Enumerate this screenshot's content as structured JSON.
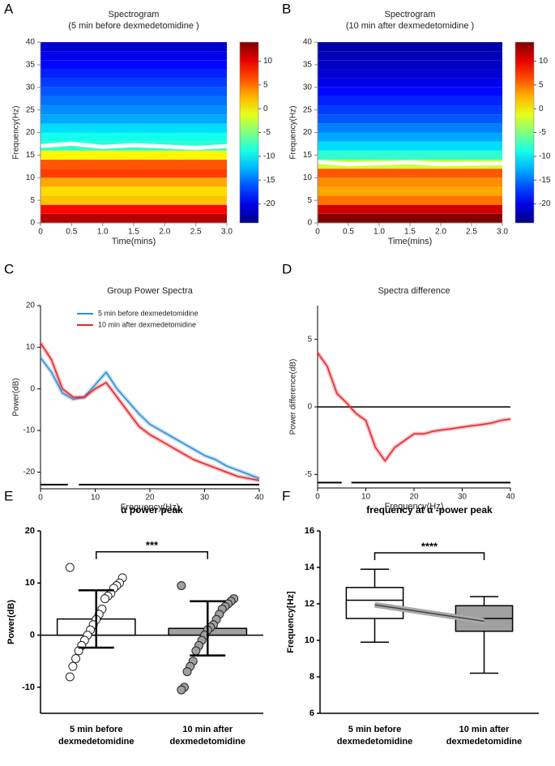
{
  "chart_data": [
    {
      "type": "heatmap",
      "panel": "A",
      "title": "Spectrogram",
      "subtitle": "(5 min before dexmedetomidine )",
      "x_label": "Time(mins)",
      "y_label": "Frequency(Hz)",
      "xlim": [
        0,
        3
      ],
      "xticks": [
        0,
        0.5,
        {
          "value": 1,
          "label": "1.0"
        },
        1.5,
        {
          "value": 2,
          "label": "2.0"
        },
        2.5,
        {
          "value": 3,
          "label": "3.0"
        }
      ],
      "ylim": [
        0,
        40
      ],
      "yticks": [
        0,
        5,
        10,
        15,
        20,
        25,
        30,
        35,
        40
      ],
      "ybins": [
        0,
        2,
        4,
        6,
        8,
        10,
        12,
        14,
        16,
        18,
        20,
        22,
        24,
        26,
        28,
        30,
        32,
        34,
        36,
        38,
        40
      ],
      "values": [
        12,
        9,
        2,
        1,
        3,
        7,
        6,
        0,
        -8,
        -9,
        -11,
        -13,
        -14,
        -15,
        -16,
        -17,
        -18,
        -19,
        -20,
        -21
      ],
      "zlim": [
        -24,
        14
      ],
      "zticks": [
        -20,
        -15,
        -10,
        -5,
        0,
        5,
        10
      ],
      "ridge": {
        "x": [
          0,
          0.5,
          1,
          1.5,
          2,
          2.5,
          3
        ],
        "y": [
          17,
          17.5,
          16.8,
          17.2,
          16.9,
          16.6,
          17
        ],
        "color": "#ffffff"
      }
    },
    {
      "type": "heatmap",
      "panel": "B",
      "title": "Spectrogram",
      "subtitle": "(10 min after dexmedetomidine )",
      "x_label": "Time(mins)",
      "y_label": "Frequency(Hz)",
      "xlim": [
        0,
        3
      ],
      "xticks": [
        0,
        0.5,
        {
          "value": 1,
          "label": "1.0"
        },
        1.5,
        {
          "value": 2,
          "label": "2.0"
        },
        2.5,
        {
          "value": 3,
          "label": "3.0"
        }
      ],
      "ylim": [
        0,
        40
      ],
      "yticks": [
        0,
        5,
        10,
        15,
        20,
        25,
        30,
        35,
        40
      ],
      "ybins": [
        0,
        2,
        4,
        6,
        8,
        10,
        12,
        14,
        16,
        18,
        20,
        22,
        24,
        26,
        28,
        30,
        32,
        34,
        36,
        38,
        40
      ],
      "values": [
        14,
        11,
        5,
        3,
        4,
        6,
        -2,
        -8,
        -11,
        -13,
        -14.5,
        -16,
        -17,
        -18,
        -19,
        -20,
        -21,
        -21.5,
        -22,
        -22.5
      ],
      "zlim": [
        -24,
        14
      ],
      "zticks": [
        -20,
        -15,
        -10,
        -5,
        0,
        5,
        10
      ],
      "ridge": {
        "x": [
          0,
          0.5,
          1,
          1.5,
          2,
          2.5,
          3
        ],
        "y": [
          13.5,
          13,
          13.2,
          13.4,
          13,
          13.1,
          13.2
        ],
        "color": "#ffffff"
      }
    },
    {
      "type": "line",
      "panel": "C",
      "title": "Group Power Spectra",
      "x_label": "Frequency(Hz)",
      "y_label": "Power(dB)",
      "xlim": [
        0,
        40
      ],
      "xticks": [
        0,
        10,
        20,
        30,
        40
      ],
      "ylim": [
        -24,
        20
      ],
      "yticks": [
        -20,
        -10,
        0,
        10,
        20
      ],
      "legend": "upper left",
      "x": [
        0,
        2,
        4,
        6,
        8,
        10,
        12,
        14,
        16,
        18,
        20,
        22,
        24,
        26,
        28,
        30,
        32,
        34,
        36,
        38,
        40
      ],
      "series": [
        {
          "name": "5 min before dexmedetomidine",
          "color": "#2a8fd6",
          "values": [
            7.5,
            4,
            -1,
            -2.5,
            -2,
            1,
            4,
            0,
            -3,
            -6,
            -8.5,
            -10,
            -11.5,
            -13,
            -14.5,
            -16,
            -17,
            -18.5,
            -19.5,
            -20.5,
            -21.5
          ]
        },
        {
          "name": "10 min after  dexmedetomidine",
          "color": "#e3262b",
          "values": [
            11,
            7,
            0,
            -2,
            -2,
            0,
            1.5,
            -2,
            -5.5,
            -9,
            -11,
            -12.5,
            -14,
            -15.5,
            -17,
            -18,
            -19,
            -20,
            -21,
            -21.5,
            -22
          ]
        }
      ],
      "significance": [
        [
          0,
          5
        ],
        [
          7,
          40
        ]
      ],
      "significance_y": -23
    },
    {
      "type": "line",
      "panel": "D",
      "title": "Spectra difference",
      "x_label": "Frequency(Hz)",
      "y_label": "Power difference(dB)",
      "xlim": [
        0,
        40
      ],
      "xticks": [
        0,
        10,
        20,
        30,
        40
      ],
      "ylim": [
        -6,
        7.5
      ],
      "yticks": [
        -5,
        0,
        5
      ],
      "hline": 0,
      "x": [
        0,
        2,
        4,
        6,
        8,
        10,
        12,
        14,
        16,
        18,
        20,
        22,
        24,
        26,
        28,
        30,
        32,
        34,
        36,
        38,
        40
      ],
      "series": [
        {
          "color": "#e3262b",
          "values": [
            4,
            3,
            1,
            0.3,
            -0.5,
            -1,
            -3,
            -4,
            -3,
            -2.5,
            -2,
            -2,
            -1.8,
            -1.7,
            -1.6,
            -1.5,
            -1.4,
            -1.3,
            -1.2,
            -1,
            -0.9
          ]
        }
      ],
      "significance": [
        [
          0,
          5
        ],
        [
          7,
          40
        ]
      ],
      "significance_y": -5.6
    },
    {
      "type": "bar",
      "panel": "E",
      "title": "α  power peak",
      "y_label": "Power(dB)",
      "categories": [
        [
          "5 min before",
          "dexmedetomidine"
        ],
        [
          "10 min after",
          "dexmedetomidine"
        ]
      ],
      "values": [
        3.1,
        1.3
      ],
      "errors": [
        5.5,
        5.2
      ],
      "colors": [
        "#ffffff",
        "#a0a0a0"
      ],
      "points": [
        [
          13,
          11,
          10,
          9.5,
          9,
          8,
          7.5,
          7,
          5,
          4,
          3,
          2,
          1,
          0,
          -1,
          -2,
          -3,
          -4.5,
          -6,
          -8
        ],
        [
          9.5,
          7,
          6.5,
          6,
          5.5,
          5,
          4,
          3,
          2,
          1.5,
          1,
          0,
          -1,
          -2,
          -3,
          -5,
          -6,
          -7,
          -10,
          -10.5
        ]
      ],
      "ylim": [
        -15,
        20
      ],
      "yticks": [
        -10,
        0,
        10,
        20
      ],
      "hline": 0,
      "annotation": "***",
      "annotation_y": 16
    },
    {
      "type": "box",
      "panel": "F",
      "title": "frequency at α -power peak",
      "y_label": "Frequency[Hz]",
      "categories": [
        [
          "5 min before",
          "dexmedetomidine"
        ],
        [
          "10 min after",
          "dexmedetomidine"
        ]
      ],
      "boxes": [
        {
          "min": 9.9,
          "q1": 11.2,
          "median": 12.2,
          "q3": 12.9,
          "max": 13.9
        },
        {
          "min": 8.2,
          "q1": 10.5,
          "median": 11.2,
          "q3": 11.9,
          "max": 12.4
        }
      ],
      "colors": [
        "#ffffff",
        "#a0a0a0"
      ],
      "trend": [
        11.95,
        11.05
      ],
      "ylim": [
        6,
        16
      ],
      "yticks": [
        6,
        8,
        10,
        12,
        14,
        16
      ],
      "annotation": "****",
      "annotation_y": 14.8
    }
  ]
}
